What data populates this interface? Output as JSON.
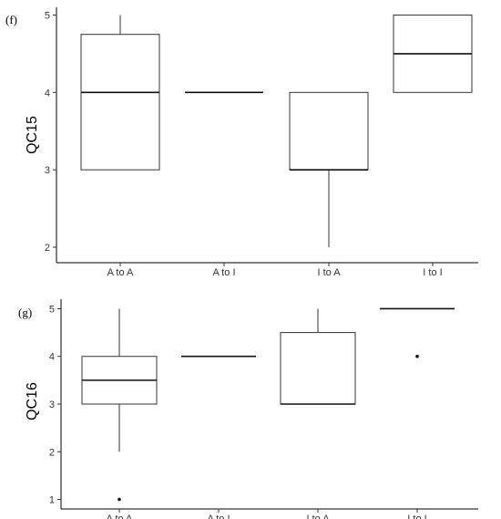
{
  "chart_data": [
    {
      "type": "box",
      "panel_label": "(f)",
      "ylabel": "QC15",
      "categories": [
        "A to A",
        "A to I",
        "I to A",
        "I to I"
      ],
      "yticks": [
        2,
        3,
        4,
        5
      ],
      "ylim": [
        1.8,
        5.1
      ],
      "boxes": [
        {
          "category": "A to A",
          "min": 3,
          "q1": 3,
          "median": 4,
          "q3": 4.75,
          "max": 5,
          "outliers": []
        },
        {
          "category": "A to I",
          "min": 4,
          "q1": 4,
          "median": 4,
          "q3": 4,
          "max": 4,
          "outliers": []
        },
        {
          "category": "I to A",
          "min": 2,
          "q1": 3,
          "median": 3,
          "q3": 4,
          "max": 4,
          "outliers": []
        },
        {
          "category": "I to I",
          "min": 4,
          "q1": 4,
          "median": 4.5,
          "q3": 5,
          "max": 5,
          "outliers": []
        }
      ],
      "grid": false
    },
    {
      "type": "box",
      "panel_label": "(g)",
      "ylabel": "QC16",
      "categories": [
        "A to A",
        "A to I",
        "I to A",
        "I to I"
      ],
      "yticks": [
        1,
        2,
        3,
        4,
        5
      ],
      "ylim": [
        0.8,
        5.2
      ],
      "boxes": [
        {
          "category": "A to A",
          "min": 2,
          "q1": 3,
          "median": 3.5,
          "q3": 4,
          "max": 5,
          "outliers": [
            1
          ]
        },
        {
          "category": "A to I",
          "min": 4,
          "q1": 4,
          "median": 4,
          "q3": 4,
          "max": 4,
          "outliers": []
        },
        {
          "category": "I to A",
          "min": 3,
          "q1": 3,
          "median": 3,
          "q3": 4.5,
          "max": 5,
          "outliers": []
        },
        {
          "category": "I to I",
          "min": 5,
          "q1": 5,
          "median": 5,
          "q3": 5,
          "max": 5,
          "outliers": [
            4
          ]
        }
      ],
      "grid": false
    }
  ]
}
